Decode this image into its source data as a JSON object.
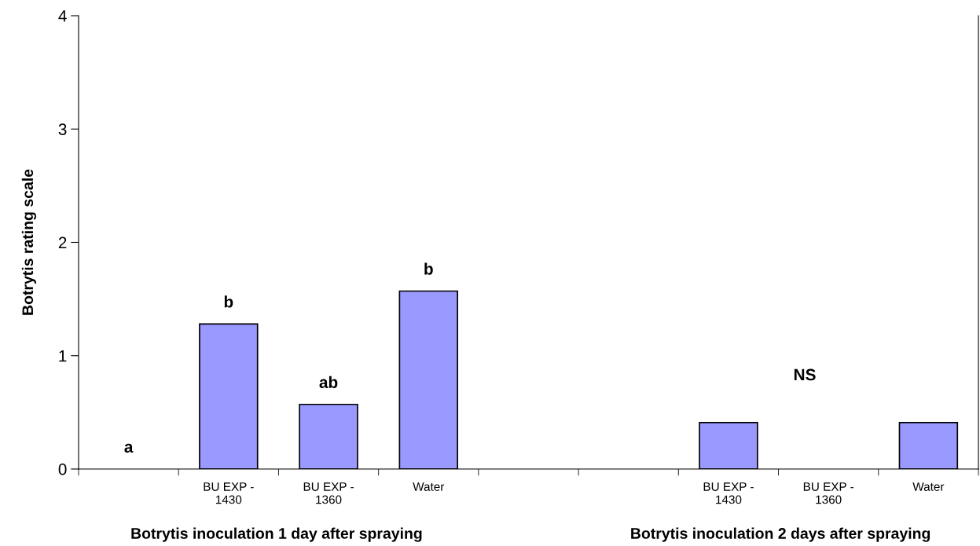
{
  "chart_data": {
    "type": "bar",
    "ylabel": "Botrytis rating scale",
    "categories": [
      null,
      "BU EXP -\n1430",
      "BU EXP -\n1360",
      "Water",
      null,
      null,
      "BU EXP -\n1430",
      "BU EXP -\n1360",
      "Water"
    ],
    "values": [
      0,
      1.28,
      0.57,
      1.57,
      null,
      0,
      0.41,
      0,
      0.41
    ],
    "value_labels": [
      "a",
      "b",
      "ab",
      "b",
      null,
      null,
      null,
      null,
      null
    ],
    "color": "#9999ff",
    "ylim": [
      0,
      4
    ],
    "yticks": [
      0,
      1,
      2,
      3,
      4
    ],
    "grid": false,
    "legend": false,
    "annotations": [
      "NS",
      "Botrytis inoculation 1 day after spraying",
      "Botrytis inoculation 2 days after spraying"
    ]
  }
}
